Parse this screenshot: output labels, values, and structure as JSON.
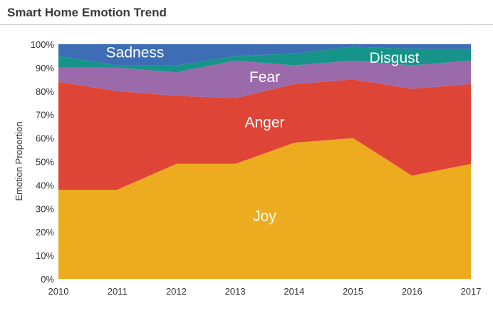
{
  "chart_data": {
    "type": "area",
    "stacked": true,
    "normalized": true,
    "title": "Smart Home Emotion Trend",
    "xlabel": "",
    "ylabel": "Emotion Proportion",
    "ylim": [
      0,
      100
    ],
    "y_ticks": [
      "0%",
      "10%",
      "20%",
      "30%",
      "40%",
      "50%",
      "60%",
      "70%",
      "80%",
      "90%",
      "100%"
    ],
    "x": [
      "2010",
      "2011",
      "2012",
      "2013",
      "2014",
      "2015",
      "2016",
      "2017"
    ],
    "grid": false,
    "series": [
      {
        "name": "Joy",
        "color": "#EDAB1F",
        "values": [
          38,
          38,
          49,
          49,
          58,
          60,
          44,
          49
        ]
      },
      {
        "name": "Anger",
        "color": "#DE4536",
        "values": [
          46,
          42,
          29,
          28,
          25,
          25,
          37,
          34
        ]
      },
      {
        "name": "Fear",
        "color": "#9B6AAB",
        "values": [
          6,
          10,
          10,
          16,
          8,
          8,
          10,
          10
        ]
      },
      {
        "name": "Disgust",
        "color": "#17948A",
        "values": [
          5,
          1,
          3,
          2,
          5,
          6,
          7,
          5
        ]
      },
      {
        "name": "Sadness",
        "color": "#3D6DB5",
        "values": [
          5,
          9,
          9,
          5,
          4,
          1,
          2,
          2
        ]
      }
    ]
  }
}
